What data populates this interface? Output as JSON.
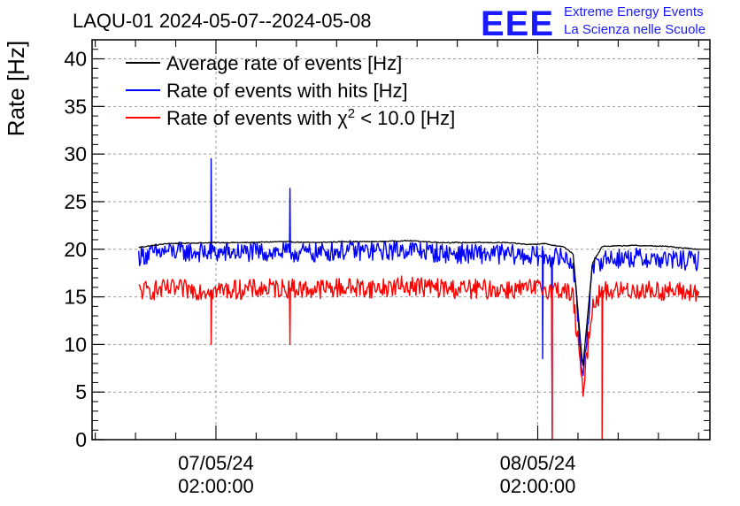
{
  "chart_data": {
    "type": "line",
    "title": "LAQU-01 2024-05-07--2024-05-08",
    "logo": {
      "mark": "EEE",
      "line1": "Extreme Energy Events",
      "line2": "La Scienza nelle Scuole",
      "color": "#1a1aff"
    },
    "ylabel": "Rate [Hz]",
    "xlabel": "",
    "ylim": [
      0,
      42
    ],
    "yticks": [
      0,
      5,
      10,
      15,
      20,
      25,
      30,
      35,
      40
    ],
    "xlim": [
      -0.385,
      1.535
    ],
    "x_units": "days since 2024-05-07 02:00:00",
    "xticks": [
      {
        "x": 0,
        "line1": "07/05/24",
        "line2": "02:00:00"
      },
      {
        "x": 1,
        "line1": "08/05/24",
        "line2": "02:00:00"
      }
    ],
    "grid": true,
    "legend_position": "top-left",
    "legend": [
      {
        "name": "Average rate of events [Hz]",
        "color": "#000000"
      },
      {
        "name": "Rate of events with hits [Hz]",
        "color": "#0000ff"
      },
      {
        "name": "Rate of events with χ² < 10.0 [Hz]",
        "color": "#ff0000",
        "parts": [
          "Rate of events with χ",
          "2",
          " < 10.0 [Hz]"
        ]
      }
    ],
    "series": [
      {
        "name": "Average rate of events [Hz]",
        "color": "#000000",
        "x": [
          -0.24,
          -0.15,
          0.0,
          0.1,
          0.2,
          0.3,
          0.4,
          0.5,
          0.6,
          0.7,
          0.8,
          0.9,
          0.97,
          1.02,
          1.05,
          1.08,
          1.11,
          1.14,
          1.17,
          1.2,
          1.3,
          1.4,
          1.5
        ],
        "y": [
          20.2,
          20.6,
          20.7,
          20.7,
          20.8,
          20.7,
          20.8,
          20.8,
          20.9,
          20.7,
          20.7,
          20.7,
          20.5,
          20.6,
          20.4,
          20.3,
          19.5,
          7.5,
          18.5,
          20.3,
          20.4,
          20.3,
          20.0
        ]
      },
      {
        "name": "Rate of events with hits [Hz]",
        "color": "#0000ff",
        "x": [
          -0.24,
          -0.15,
          0.0,
          0.1,
          0.2,
          0.3,
          0.4,
          0.5,
          0.6,
          0.7,
          0.8,
          0.9,
          0.97,
          1.02,
          1.05,
          1.08,
          1.11,
          1.14,
          1.17,
          1.2,
          1.3,
          1.4,
          1.5
        ],
        "y": [
          19.3,
          19.8,
          19.6,
          19.7,
          19.7,
          19.6,
          19.9,
          19.8,
          20.0,
          19.6,
          19.5,
          19.5,
          19.3,
          19.3,
          19.1,
          19.2,
          18.5,
          6.5,
          17.8,
          19.0,
          19.1,
          18.9,
          18.8
        ]
      },
      {
        "name": "Rate of events with χ² < 10.0 [Hz]",
        "color": "#ff0000",
        "x": [
          -0.24,
          -0.15,
          0.0,
          0.1,
          0.2,
          0.3,
          0.4,
          0.5,
          0.6,
          0.7,
          0.8,
          0.9,
          0.97,
          1.02,
          1.05,
          1.08,
          1.11,
          1.14,
          1.17,
          1.2,
          1.3,
          1.4,
          1.5
        ],
        "y": [
          15.6,
          15.8,
          15.7,
          15.8,
          15.9,
          15.8,
          16.0,
          15.9,
          16.2,
          15.9,
          15.8,
          15.8,
          15.8,
          15.9,
          15.7,
          15.8,
          15.0,
          5.0,
          14.2,
          15.6,
          15.7,
          15.6,
          15.4
        ]
      }
    ],
    "annotations": [
      {
        "series": 1,
        "x": -0.015,
        "y": 29.5,
        "note": "spike"
      },
      {
        "series": 1,
        "x": 0.23,
        "y": 26.4,
        "note": "spike"
      },
      {
        "series": 1,
        "x": 1.015,
        "y": 8.5,
        "note": "dip"
      },
      {
        "series": 1,
        "x": 1.045,
        "y": 0.2,
        "note": "dip"
      },
      {
        "series": 2,
        "x": -0.015,
        "y": 10.0,
        "note": "dip"
      },
      {
        "series": 2,
        "x": 0.23,
        "y": 10.0,
        "note": "dip"
      },
      {
        "series": 2,
        "x": 1.045,
        "y": 0.0,
        "note": "dip"
      },
      {
        "series": 2,
        "x": 1.2,
        "y": 0.0,
        "note": "dip"
      }
    ]
  }
}
